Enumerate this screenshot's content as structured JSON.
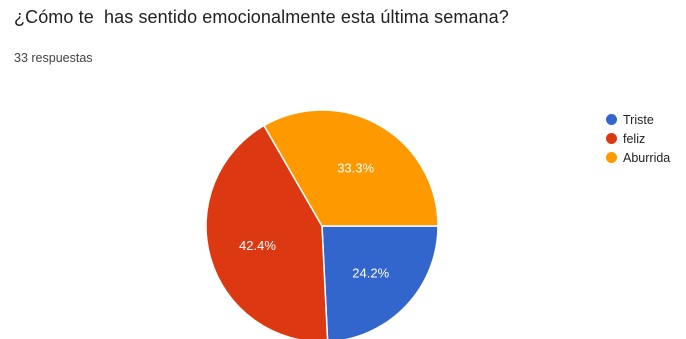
{
  "question": {
    "title": "¿Cómo te  has sentido emocionalmente esta última semana?",
    "responses": "33 respuestas"
  },
  "chart_data": {
    "type": "pie",
    "categories": [
      "Triste",
      "feliz",
      "Aburrida"
    ],
    "values": [
      24.2,
      42.4,
      33.3
    ],
    "labels": [
      "24.2%",
      "42.4%",
      "33.3%"
    ],
    "colors": [
      "#3366cc",
      "#dc3912",
      "#ff9900"
    ],
    "legend_position": "right"
  }
}
